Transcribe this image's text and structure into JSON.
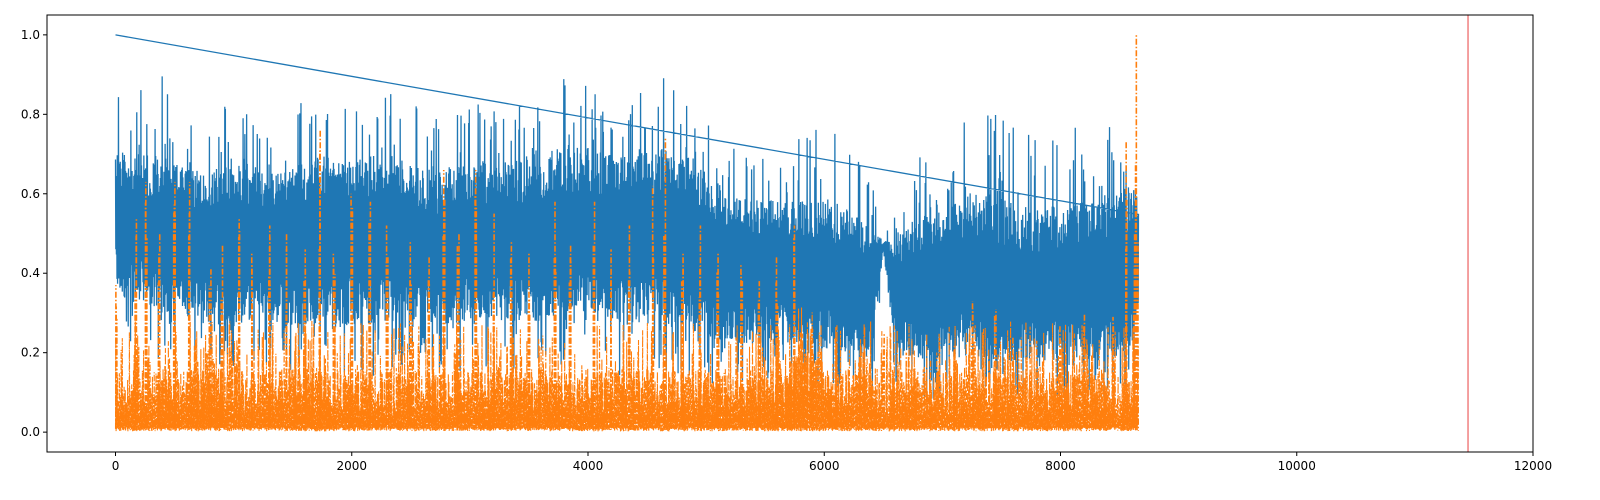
{
  "chart_data": {
    "type": "line",
    "title": "",
    "xlabel": "",
    "ylabel": "",
    "xlim": [
      -580,
      12000
    ],
    "ylim": [
      -0.05,
      1.05
    ],
    "x_ticks": [
      0,
      2000,
      4000,
      6000,
      8000,
      10000,
      12000
    ],
    "x_tick_labels": [
      "0",
      "2000",
      "4000",
      "6000",
      "8000",
      "10000",
      "12000"
    ],
    "y_ticks": [
      0.0,
      0.2,
      0.4,
      0.6,
      0.8,
      1.0
    ],
    "y_tick_labels": [
      "0.0",
      "0.2",
      "0.4",
      "0.6",
      "0.8",
      "1.0"
    ],
    "grid": false,
    "n_points": 8660,
    "vertical_line": {
      "x": 11450,
      "color": "#f08080"
    },
    "series": [
      {
        "color": "#1f77b4",
        "line_style": "solid",
        "x_range": [
          0,
          8660
        ],
        "envelope": {
          "x": [
            0,
            200,
            400,
            600,
            800,
            1000,
            1200,
            1400,
            1600,
            1800,
            2000,
            2200,
            2400,
            2600,
            2800,
            3000,
            3200,
            3400,
            3600,
            3800,
            4000,
            4200,
            4400,
            4600,
            4800,
            5000,
            5200,
            5400,
            5600,
            5800,
            6000,
            6200,
            6400,
            6500,
            6600,
            6800,
            7000,
            7200,
            7400,
            7600,
            7800,
            8000,
            8200,
            8400,
            8600,
            8660
          ],
          "upper": [
            1.0,
            0.88,
            0.9,
            0.8,
            0.82,
            0.84,
            0.8,
            0.82,
            0.84,
            0.9,
            0.84,
            0.88,
            0.9,
            0.82,
            0.8,
            0.86,
            0.82,
            0.84,
            0.86,
            0.9,
            0.88,
            0.84,
            0.88,
            0.9,
            0.88,
            0.84,
            0.78,
            0.74,
            0.78,
            0.76,
            0.78,
            0.76,
            0.72,
            0.62,
            0.66,
            0.7,
            0.72,
            0.8,
            0.82,
            0.78,
            0.74,
            0.76,
            0.78,
            0.8,
            0.85,
            0.8
          ],
          "lower": [
            0.26,
            0.2,
            0.18,
            0.16,
            0.15,
            0.14,
            0.16,
            0.15,
            0.14,
            0.12,
            0.14,
            0.14,
            0.15,
            0.16,
            0.14,
            0.14,
            0.15,
            0.15,
            0.15,
            0.16,
            0.15,
            0.14,
            0.14,
            0.14,
            0.13,
            0.12,
            0.12,
            0.12,
            0.13,
            0.12,
            0.1,
            0.1,
            0.08,
            0.44,
            0.1,
            0.08,
            0.08,
            0.08,
            0.08,
            0.08,
            0.08,
            0.08,
            0.08,
            0.08,
            0.1,
            0.2
          ],
          "core_upper": [
            0.72,
            0.7,
            0.7,
            0.66,
            0.66,
            0.68,
            0.66,
            0.66,
            0.68,
            0.7,
            0.68,
            0.7,
            0.7,
            0.66,
            0.66,
            0.7,
            0.68,
            0.7,
            0.7,
            0.72,
            0.72,
            0.7,
            0.7,
            0.72,
            0.7,
            0.66,
            0.6,
            0.58,
            0.6,
            0.58,
            0.58,
            0.56,
            0.52,
            0.48,
            0.5,
            0.54,
            0.56,
            0.6,
            0.6,
            0.58,
            0.56,
            0.58,
            0.58,
            0.6,
            0.62,
            0.6
          ],
          "core_lower": [
            0.35,
            0.32,
            0.3,
            0.28,
            0.27,
            0.27,
            0.28,
            0.27,
            0.27,
            0.26,
            0.27,
            0.27,
            0.28,
            0.28,
            0.27,
            0.27,
            0.28,
            0.28,
            0.28,
            0.3,
            0.28,
            0.27,
            0.27,
            0.27,
            0.26,
            0.24,
            0.22,
            0.22,
            0.23,
            0.22,
            0.2,
            0.2,
            0.18,
            0.46,
            0.2,
            0.18,
            0.18,
            0.18,
            0.18,
            0.18,
            0.18,
            0.18,
            0.18,
            0.18,
            0.2,
            0.3
          ]
        }
      },
      {
        "color": "#ff7f0e",
        "line_style": "dashdot",
        "x_range": [
          0,
          8660
        ],
        "peaks": [
          {
            "x": 10,
            "y": 0.37
          },
          {
            "x": 170,
            "y": 0.54
          },
          {
            "x": 260,
            "y": 0.63
          },
          {
            "x": 370,
            "y": 0.5
          },
          {
            "x": 500,
            "y": 0.63
          },
          {
            "x": 620,
            "y": 0.63
          },
          {
            "x": 800,
            "y": 0.41
          },
          {
            "x": 900,
            "y": 0.47
          },
          {
            "x": 1050,
            "y": 0.54
          },
          {
            "x": 1150,
            "y": 0.45
          },
          {
            "x": 1300,
            "y": 0.52
          },
          {
            "x": 1450,
            "y": 0.5
          },
          {
            "x": 1600,
            "y": 0.46
          },
          {
            "x": 1730,
            "y": 0.76
          },
          {
            "x": 1850,
            "y": 0.45
          },
          {
            "x": 2000,
            "y": 0.6
          },
          {
            "x": 2150,
            "y": 0.58
          },
          {
            "x": 2300,
            "y": 0.52
          },
          {
            "x": 2500,
            "y": 0.48
          },
          {
            "x": 2650,
            "y": 0.44
          },
          {
            "x": 2780,
            "y": 0.66
          },
          {
            "x": 2900,
            "y": 0.5
          },
          {
            "x": 3050,
            "y": 0.66
          },
          {
            "x": 3200,
            "y": 0.55
          },
          {
            "x": 3350,
            "y": 0.48
          },
          {
            "x": 3500,
            "y": 0.45
          },
          {
            "x": 3720,
            "y": 0.58
          },
          {
            "x": 3850,
            "y": 0.47
          },
          {
            "x": 4050,
            "y": 0.58
          },
          {
            "x": 4200,
            "y": 0.46
          },
          {
            "x": 4350,
            "y": 0.52
          },
          {
            "x": 4550,
            "y": 0.62
          },
          {
            "x": 4650,
            "y": 0.74
          },
          {
            "x": 4800,
            "y": 0.45
          },
          {
            "x": 4950,
            "y": 0.52
          },
          {
            "x": 5100,
            "y": 0.45
          },
          {
            "x": 5300,
            "y": 0.42
          },
          {
            "x": 5450,
            "y": 0.38
          },
          {
            "x": 5600,
            "y": 0.44
          },
          {
            "x": 5750,
            "y": 0.52
          },
          {
            "x": 5900,
            "y": 0.26
          },
          {
            "x": 6100,
            "y": 0.24
          },
          {
            "x": 6300,
            "y": 0.22
          },
          {
            "x": 6500,
            "y": 0.25
          },
          {
            "x": 6700,
            "y": 0.2
          },
          {
            "x": 6900,
            "y": 0.18
          },
          {
            "x": 7100,
            "y": 0.22
          },
          {
            "x": 7250,
            "y": 0.33
          },
          {
            "x": 7450,
            "y": 0.31
          },
          {
            "x": 7600,
            "y": 0.24
          },
          {
            "x": 7800,
            "y": 0.23
          },
          {
            "x": 8000,
            "y": 0.27
          },
          {
            "x": 8200,
            "y": 0.3
          },
          {
            "x": 8450,
            "y": 0.29
          },
          {
            "x": 8560,
            "y": 0.73
          },
          {
            "x": 8620,
            "y": 0.5
          },
          {
            "x": 8640,
            "y": 1.0
          },
          {
            "x": 8655,
            "y": 0.48
          }
        ],
        "typical_level": 0.1
      }
    ]
  }
}
